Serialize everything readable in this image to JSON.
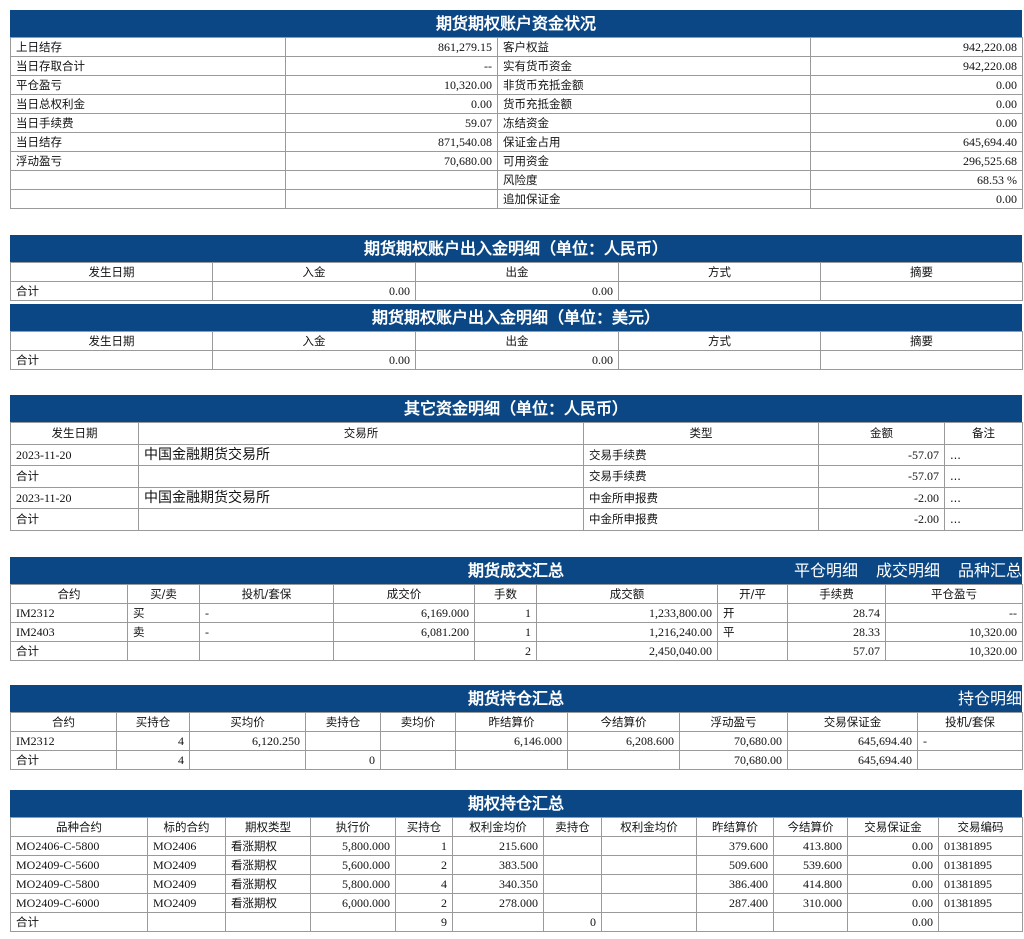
{
  "colors": {
    "header_bg": "#0b4784",
    "header_text": "#ffffff"
  },
  "account_status": {
    "title": "期货期权账户资金状况",
    "rows": [
      [
        "上日结存",
        "861,279.15",
        "客户权益",
        "942,220.08"
      ],
      [
        "当日存取合计",
        "--",
        "实有货币资金",
        "942,220.08"
      ],
      [
        "平仓盈亏",
        "10,320.00",
        "非货币充抵金额",
        "0.00"
      ],
      [
        "当日总权利金",
        "0.00",
        "货币充抵金额",
        "0.00"
      ],
      [
        "当日手续费",
        "59.07",
        "冻结资金",
        "0.00"
      ],
      [
        "当日结存",
        "871,540.08",
        "保证金占用",
        "645,694.40"
      ],
      [
        "浮动盈亏",
        "70,680.00",
        "可用资金",
        "296,525.68"
      ],
      [
        "",
        "",
        "风险度",
        "68.53 %"
      ],
      [
        "",
        "",
        "追加保证金",
        "0.00"
      ]
    ]
  },
  "cash_rmb": {
    "title": "期货期权账户出入金明细（单位：人民币）",
    "headers": [
      "发生日期",
      "入金",
      "出金",
      "方式",
      "摘要"
    ],
    "rows": [
      [
        "合计",
        "0.00",
        "0.00",
        "",
        ""
      ]
    ]
  },
  "cash_usd": {
    "title": "期货期权账户出入金明细（单位：美元）",
    "headers": [
      "发生日期",
      "入金",
      "出金",
      "方式",
      "摘要"
    ],
    "rows": [
      [
        "合计",
        "0.00",
        "0.00",
        "",
        ""
      ]
    ]
  },
  "other_funds": {
    "title": "其它资金明细（单位：人民币）",
    "headers": [
      "发生日期",
      "交易所",
      "类型",
      "金额",
      "备注"
    ],
    "rows": [
      [
        "2023-11-20",
        "中国金融期货交易所",
        "交易手续费",
        "-57.07",
        "..."
      ],
      [
        "合计",
        "",
        "交易手续费",
        "-57.07",
        "..."
      ],
      [
        "2023-11-20",
        "中国金融期货交易所",
        "中金所申报费",
        "-2.00",
        "..."
      ],
      [
        "合计",
        "",
        "中金所申报费",
        "-2.00",
        "..."
      ]
    ]
  },
  "futures_trades": {
    "title": "期货成交汇总",
    "links": [
      "平仓明细",
      "成交明细",
      "品种汇总"
    ],
    "headers": [
      "合约",
      "买/卖",
      "投机/套保",
      "成交价",
      "手数",
      "成交额",
      "开/平",
      "手续费",
      "平仓盈亏"
    ],
    "rows": [
      [
        "IM2312",
        "买",
        "-",
        "6,169.000",
        "1",
        "1,233,800.00",
        "开",
        "28.74",
        "--"
      ],
      [
        "IM2403",
        "卖",
        "-",
        "6,081.200",
        "1",
        "1,216,240.00",
        "平",
        "28.33",
        "10,320.00"
      ],
      [
        "合计",
        "",
        "",
        "",
        "2",
        "2,450,040.00",
        "",
        "57.07",
        "10,320.00"
      ]
    ]
  },
  "futures_positions": {
    "title": "期货持仓汇总",
    "links": [
      "持仓明细"
    ],
    "headers": [
      "合约",
      "买持仓",
      "买均价",
      "卖持仓",
      "卖均价",
      "昨结算价",
      "今结算价",
      "浮动盈亏",
      "交易保证金",
      "投机/套保"
    ],
    "rows": [
      [
        "IM2312",
        "4",
        "6,120.250",
        "",
        "",
        "6,146.000",
        "6,208.600",
        "70,680.00",
        "645,694.40",
        "-"
      ],
      [
        "合计",
        "4",
        "",
        "0",
        "",
        "",
        "",
        "70,680.00",
        "645,694.40",
        ""
      ]
    ]
  },
  "option_positions": {
    "title": "期权持仓汇总",
    "headers": [
      "品种合约",
      "标的合约",
      "期权类型",
      "执行价",
      "买持仓",
      "权利金均价",
      "卖持仓",
      "权利金均价",
      "昨结算价",
      "今结算价",
      "交易保证金",
      "交易编码"
    ],
    "rows": [
      [
        "MO2406-C-5800",
        "MO2406",
        "看涨期权",
        "5,800.000",
        "1",
        "215.600",
        "",
        "",
        "379.600",
        "413.800",
        "0.00",
        "01381895"
      ],
      [
        "MO2409-C-5600",
        "MO2409",
        "看涨期权",
        "5,600.000",
        "2",
        "383.500",
        "",
        "",
        "509.600",
        "539.600",
        "0.00",
        "01381895"
      ],
      [
        "MO2409-C-5800",
        "MO2409",
        "看涨期权",
        "5,800.000",
        "4",
        "340.350",
        "",
        "",
        "386.400",
        "414.800",
        "0.00",
        "01381895"
      ],
      [
        "MO2409-C-6000",
        "MO2409",
        "看涨期权",
        "6,000.000",
        "2",
        "278.000",
        "",
        "",
        "287.400",
        "310.000",
        "0.00",
        "01381895"
      ],
      [
        "合计",
        "",
        "",
        "",
        "9",
        "",
        "0",
        "",
        "",
        "",
        "0.00",
        ""
      ]
    ]
  }
}
